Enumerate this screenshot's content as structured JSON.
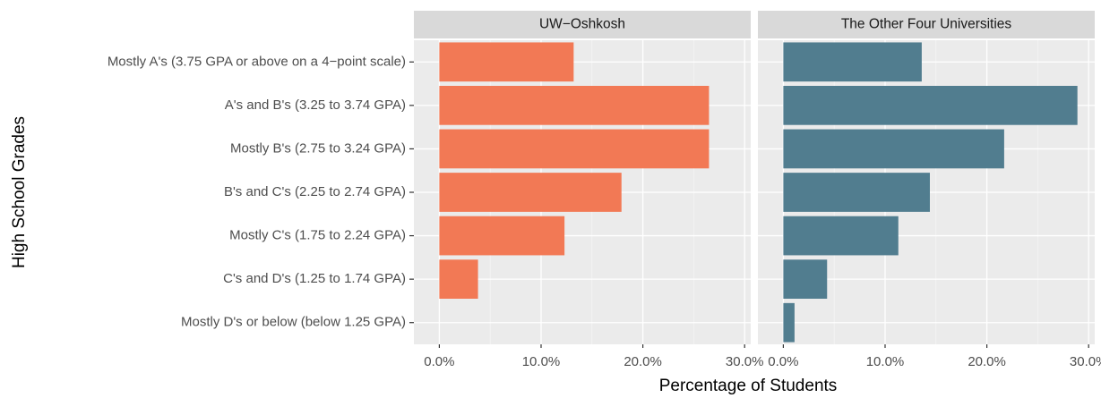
{
  "chart_data": {
    "type": "bar",
    "orientation": "horizontal",
    "x_label": "Percentage of Students",
    "y_label": "High School Grades",
    "categories": [
      "Mostly A's (3.75 GPA or above on a 4−point scale)",
      "A's and B's (3.25 to 3.74 GPA)",
      "Mostly B's (2.75 to 3.24 GPA)",
      "B's and C's (2.25 to 2.74 GPA)",
      "Mostly C's (1.75 to 2.24 GPA)",
      "C's and D's (1.25 to 1.74 GPA)",
      "Mostly D's or below (below 1.25 GPA)"
    ],
    "facets": [
      {
        "title": "UW−Oshkosh",
        "color": "#f27955",
        "values": [
          13.2,
          26.5,
          26.5,
          17.9,
          12.3,
          3.8,
          0
        ]
      },
      {
        "title": "The Other Four Universities",
        "color": "#517d8f",
        "values": [
          13.6,
          28.9,
          21.7,
          14.4,
          11.3,
          4.3,
          1.1
        ]
      }
    ],
    "xlim": [
      -2.5,
      30.6
    ],
    "xticks": [
      {
        "value": 0,
        "label": "0.0%"
      },
      {
        "value": 10,
        "label": "10.0%"
      },
      {
        "value": 20,
        "label": "20.0%"
      },
      {
        "value": 30,
        "label": "30.0%"
      }
    ],
    "grid": true
  }
}
